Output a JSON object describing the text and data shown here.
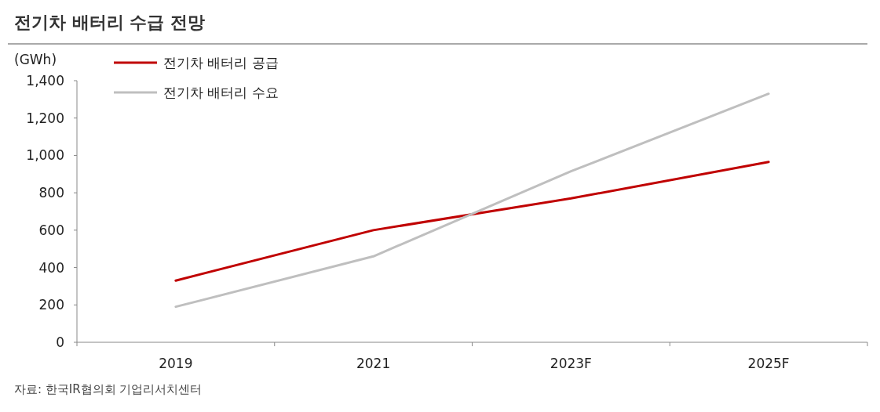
{
  "chart_data": {
    "type": "line",
    "title": "전기차 배터리 수급 전망",
    "ylabel": "(GWh)",
    "categories": [
      "2019",
      "2021",
      "2023F",
      "2025F"
    ],
    "series": [
      {
        "name": "전기차 배터리 공급",
        "color": "#c00000",
        "values": [
          330,
          600,
          770,
          965
        ]
      },
      {
        "name": "전기차 배터리 수요",
        "color": "#bfbfbf",
        "values": [
          190,
          460,
          915,
          1330
        ]
      }
    ],
    "ylim": [
      0,
      1400
    ],
    "yticks": [
      {
        "value": 0,
        "label": "0"
      },
      {
        "value": 200,
        "label": "200"
      },
      {
        "value": 400,
        "label": "400"
      },
      {
        "value": 600,
        "label": "600"
      },
      {
        "value": 800,
        "label": "800"
      },
      {
        "value": 1000,
        "label": "1,000"
      },
      {
        "value": 1200,
        "label": "1,200"
      },
      {
        "value": 1400,
        "label": "1,400"
      }
    ],
    "legend": "top left",
    "grid": false,
    "marker": "none",
    "line_style": "solid",
    "annotations": [
      "자료: 한국IR협의회 기업리서치센터"
    ]
  }
}
